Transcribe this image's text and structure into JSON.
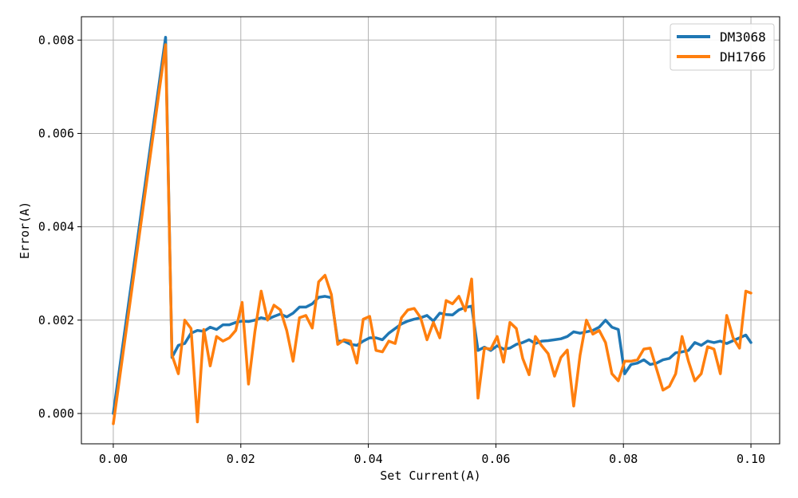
{
  "chart_data": {
    "type": "line",
    "xlabel": "Set Current(A)",
    "ylabel": "Error(A)",
    "xlim": [
      -0.005,
      0.1045
    ],
    "ylim": [
      -0.00065,
      0.0085
    ],
    "xticks": [
      "0.00",
      "0.02",
      "0.04",
      "0.06",
      "0.08",
      "0.10"
    ],
    "yticks": [
      "0.000",
      "0.002",
      "0.004",
      "0.006",
      "0.008"
    ],
    "grid": true,
    "legend_position": "top-right",
    "series": [
      {
        "name": "DM3068",
        "color": "#1f77b4",
        "x": [
          0,
          0.0082,
          0.0092,
          0.0102,
          0.0112,
          0.0122,
          0.0132,
          0.0142,
          0.0152,
          0.0162,
          0.0172,
          0.0182,
          0.0192,
          0.0202,
          0.0212,
          0.0222,
          0.0232,
          0.0242,
          0.0252,
          0.0262,
          0.0272,
          0.0282,
          0.0292,
          0.0302,
          0.0312,
          0.0322,
          0.0332,
          0.0342,
          0.0352,
          0.0362,
          0.0372,
          0.0382,
          0.0392,
          0.0402,
          0.0412,
          0.0422,
          0.0432,
          0.0442,
          0.0452,
          0.0462,
          0.0472,
          0.0482,
          0.0492,
          0.0502,
          0.0512,
          0.0522,
          0.0532,
          0.0542,
          0.0552,
          0.0562,
          0.0572,
          0.0582,
          0.0592,
          0.0602,
          0.0612,
          0.0622,
          0.0632,
          0.0642,
          0.0652,
          0.0662,
          0.0672,
          0.0682,
          0.0692,
          0.0702,
          0.0712,
          0.0722,
          0.0732,
          0.0742,
          0.0752,
          0.0762,
          0.0772,
          0.0782,
          0.0792,
          0.0802,
          0.0812,
          0.0822,
          0.0832,
          0.0842,
          0.0852,
          0.0862,
          0.0872,
          0.0882,
          0.0892,
          0.0902,
          0.0912,
          0.0922,
          0.0932,
          0.0942,
          0.0952,
          0.0962,
          0.0972,
          0.0982,
          0.0992,
          0.1
        ],
        "y": [
          0,
          0.00806,
          0.0012,
          0.00146,
          0.0015,
          0.00172,
          0.00178,
          0.00176,
          0.00185,
          0.0018,
          0.0019,
          0.0019,
          0.00195,
          0.00198,
          0.00197,
          0.002,
          0.00205,
          0.00202,
          0.00208,
          0.00213,
          0.00207,
          0.00215,
          0.00228,
          0.00228,
          0.00235,
          0.00249,
          0.00251,
          0.00248,
          0.00155,
          0.00155,
          0.00148,
          0.00146,
          0.00155,
          0.00162,
          0.00162,
          0.00158,
          0.00172,
          0.00182,
          0.00192,
          0.00198,
          0.00202,
          0.00205,
          0.0021,
          0.00198,
          0.00215,
          0.00212,
          0.00211,
          0.00222,
          0.00227,
          0.0023,
          0.00135,
          0.00142,
          0.00135,
          0.00145,
          0.00138,
          0.0014,
          0.00148,
          0.00152,
          0.00158,
          0.0015,
          0.00155,
          0.00156,
          0.00158,
          0.0016,
          0.00165,
          0.00175,
          0.00172,
          0.00175,
          0.00178,
          0.00185,
          0.002,
          0.00185,
          0.0018,
          0.00085,
          0.00105,
          0.00108,
          0.00115,
          0.00105,
          0.00108,
          0.00115,
          0.00118,
          0.0013,
          0.00132,
          0.00135,
          0.00152,
          0.00146,
          0.00155,
          0.00152,
          0.00155,
          0.0015,
          0.00156,
          0.00162,
          0.00168,
          0.00152
        ]
      },
      {
        "name": "DH1766",
        "color": "#ff7f0e",
        "x": [
          0,
          0.0082,
          0.0092,
          0.0102,
          0.0112,
          0.0122,
          0.0132,
          0.0142,
          0.0152,
          0.0162,
          0.0172,
          0.0182,
          0.0192,
          0.0202,
          0.0212,
          0.0222,
          0.0232,
          0.0242,
          0.0252,
          0.0262,
          0.0272,
          0.0282,
          0.0292,
          0.0302,
          0.0312,
          0.0322,
          0.0332,
          0.0342,
          0.0352,
          0.0362,
          0.0372,
          0.0382,
          0.0392,
          0.0402,
          0.0412,
          0.0422,
          0.0432,
          0.0442,
          0.0452,
          0.0462,
          0.0472,
          0.0482,
          0.0492,
          0.0502,
          0.0512,
          0.0522,
          0.0532,
          0.0542,
          0.0552,
          0.0562,
          0.0572,
          0.0582,
          0.0592,
          0.0602,
          0.0612,
          0.0622,
          0.0632,
          0.0642,
          0.0652,
          0.0662,
          0.0672,
          0.0682,
          0.0692,
          0.0702,
          0.0712,
          0.0722,
          0.0732,
          0.0742,
          0.0752,
          0.0762,
          0.0772,
          0.0782,
          0.0792,
          0.0802,
          0.0812,
          0.0822,
          0.0832,
          0.0842,
          0.0852,
          0.0862,
          0.0872,
          0.0882,
          0.0892,
          0.0902,
          0.0912,
          0.0922,
          0.0932,
          0.0942,
          0.0952,
          0.0962,
          0.0972,
          0.0982,
          0.0992,
          0.1
        ],
        "y": [
          -0.00022,
          0.0079,
          0.00125,
          0.00085,
          0.002,
          0.00182,
          -0.00018,
          0.0018,
          0.00102,
          0.00165,
          0.00155,
          0.00162,
          0.00178,
          0.00238,
          0.00063,
          0.00175,
          0.00262,
          0.002,
          0.00232,
          0.00222,
          0.00178,
          0.00112,
          0.00205,
          0.0021,
          0.00183,
          0.00282,
          0.00296,
          0.00255,
          0.00148,
          0.00158,
          0.00155,
          0.00108,
          0.00202,
          0.00208,
          0.00135,
          0.00132,
          0.00155,
          0.0015,
          0.00205,
          0.00222,
          0.00225,
          0.00205,
          0.00158,
          0.00195,
          0.00162,
          0.00242,
          0.00235,
          0.00251,
          0.0022,
          0.00288,
          0.00033,
          0.0014,
          0.00138,
          0.00165,
          0.0011,
          0.00195,
          0.00182,
          0.00118,
          0.00083,
          0.00165,
          0.00145,
          0.00128,
          0.0008,
          0.0012,
          0.00136,
          0.00016,
          0.00125,
          0.002,
          0.0017,
          0.00178,
          0.00152,
          0.00085,
          0.0007,
          0.00112,
          0.00112,
          0.00115,
          0.00138,
          0.0014,
          0.00095,
          0.0005,
          0.00058,
          0.00085,
          0.00165,
          0.00112,
          0.0007,
          0.00085,
          0.00143,
          0.00138,
          0.00085,
          0.0021,
          0.00162,
          0.0014,
          0.00262,
          0.00258
        ]
      }
    ]
  }
}
